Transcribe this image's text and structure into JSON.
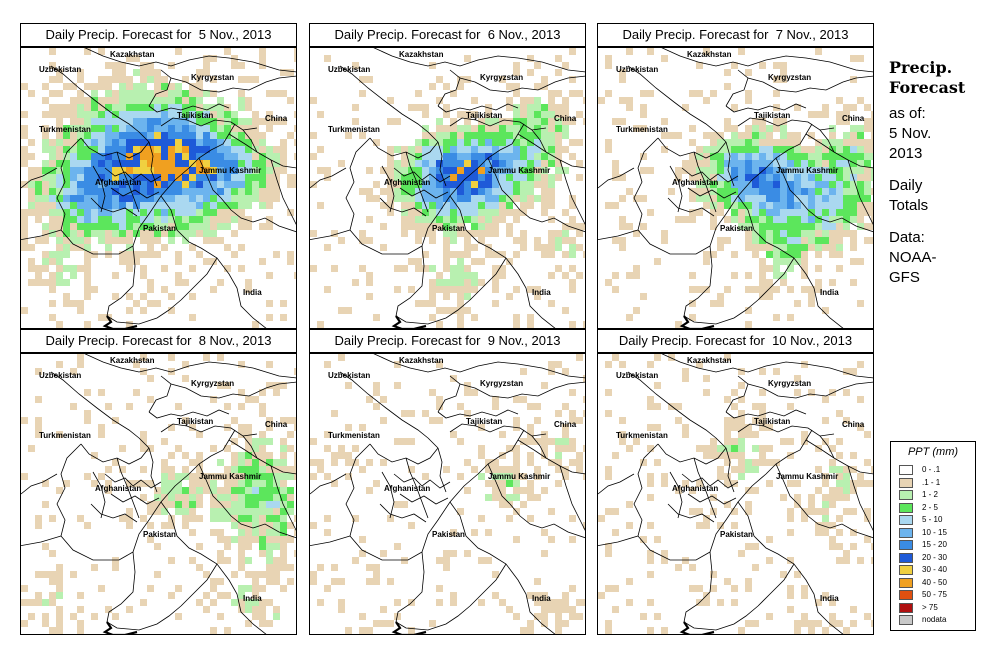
{
  "panels": [
    {
      "title": "Daily Precip. Forecast for  5 Nov., 2013",
      "day": 0
    },
    {
      "title": "Daily Precip. Forecast for  6 Nov., 2013",
      "day": 1
    },
    {
      "title": "Daily Precip. Forecast for  7 Nov., 2013",
      "day": 2
    },
    {
      "title": "Daily Precip. Forecast for  8 Nov., 2013",
      "day": 3
    },
    {
      "title": "Daily Precip. Forecast for  9 Nov., 2013",
      "day": 4
    },
    {
      "title": "Daily Precip. Forecast for  10 Nov., 2013",
      "day": 5
    }
  ],
  "map_labels": {
    "kazakhstan": "Kazakhstan",
    "uzbekistan": "Uzbekistan",
    "kyrgyzstan": "Kyrgyzstan",
    "tajikistan": "Tajikistan",
    "china": "China",
    "turkmenistan": "Turkmenistan",
    "afghanistan": "Afghanistan",
    "jammu_kashmir": "Jammu Kashmir",
    "pakistan": "Pakistan",
    "india": "India"
  },
  "side": {
    "heading1": "Precip.",
    "heading2": "Forecast",
    "as_of": "as of:",
    "date1": "5 Nov.",
    "date2": "2013",
    "daily": "Daily",
    "totals": "Totals",
    "data": "Data:",
    "source1": "NOAA-",
    "source2": "GFS"
  },
  "legend": {
    "title": "PPT (mm)",
    "items": [
      {
        "label": "0 - .1",
        "color": "#ffffff"
      },
      {
        "label": ".1 - 1",
        "color": "#e8d4b4"
      },
      {
        "label": "1 - 2",
        "color": "#b8f0b0"
      },
      {
        "label": "2 - 5",
        "color": "#5ce65c"
      },
      {
        "label": "5 - 10",
        "color": "#aad8f0"
      },
      {
        "label": "10 - 15",
        "color": "#6cb4ee"
      },
      {
        "label": "15 - 20",
        "color": "#3a8ce4"
      },
      {
        "label": "20 - 30",
        "color": "#1e5ad8"
      },
      {
        "label": "30 - 40",
        "color": "#f0d040"
      },
      {
        "label": "40 - 50",
        "color": "#f0a020"
      },
      {
        "label": "50 - 75",
        "color": "#e05010"
      },
      {
        "label": "> 75",
        "color": "#b01010"
      },
      {
        "label": "nodata",
        "color": "#c8c8c8"
      }
    ]
  }
}
